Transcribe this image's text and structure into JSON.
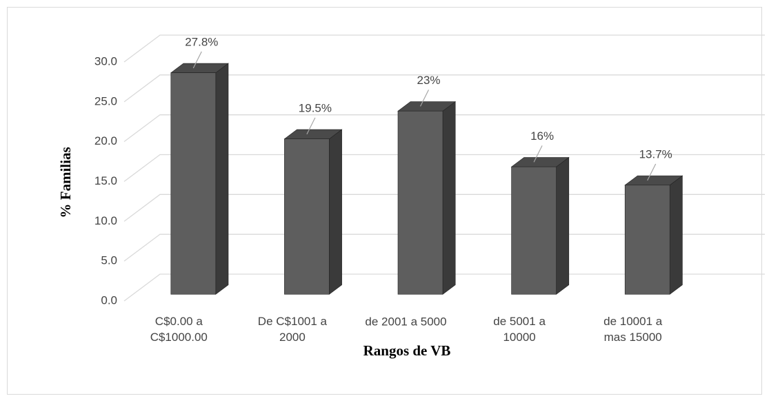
{
  "chart_data": {
    "type": "bar3d",
    "categories": [
      "C$0.00 a\nC$1000.00",
      "De C$1001 a\n2000",
      "de 2001 a 5000",
      "de 5001 a\n10000",
      "de 10001 a\nmas 15000"
    ],
    "values": [
      27.8,
      19.5,
      23,
      16,
      13.7
    ],
    "value_labels": [
      "27.8%",
      "19.5%",
      "23%",
      "16%",
      "13.7%"
    ],
    "color": "#5e5e5e",
    "xlabel": "Rangos de VB",
    "ylabel": "% Familias",
    "ylim": [
      0,
      30
    ],
    "yticks": [
      {
        "value": 0,
        "label": "0.0"
      },
      {
        "value": 5,
        "label": "5.0"
      },
      {
        "value": 10,
        "label": "10.0"
      },
      {
        "value": 15,
        "label": "15.0"
      },
      {
        "value": 20,
        "label": "20.0"
      },
      {
        "value": 25,
        "label": "25.0"
      },
      {
        "value": 30,
        "label": "30.0"
      }
    ],
    "grid": true
  }
}
